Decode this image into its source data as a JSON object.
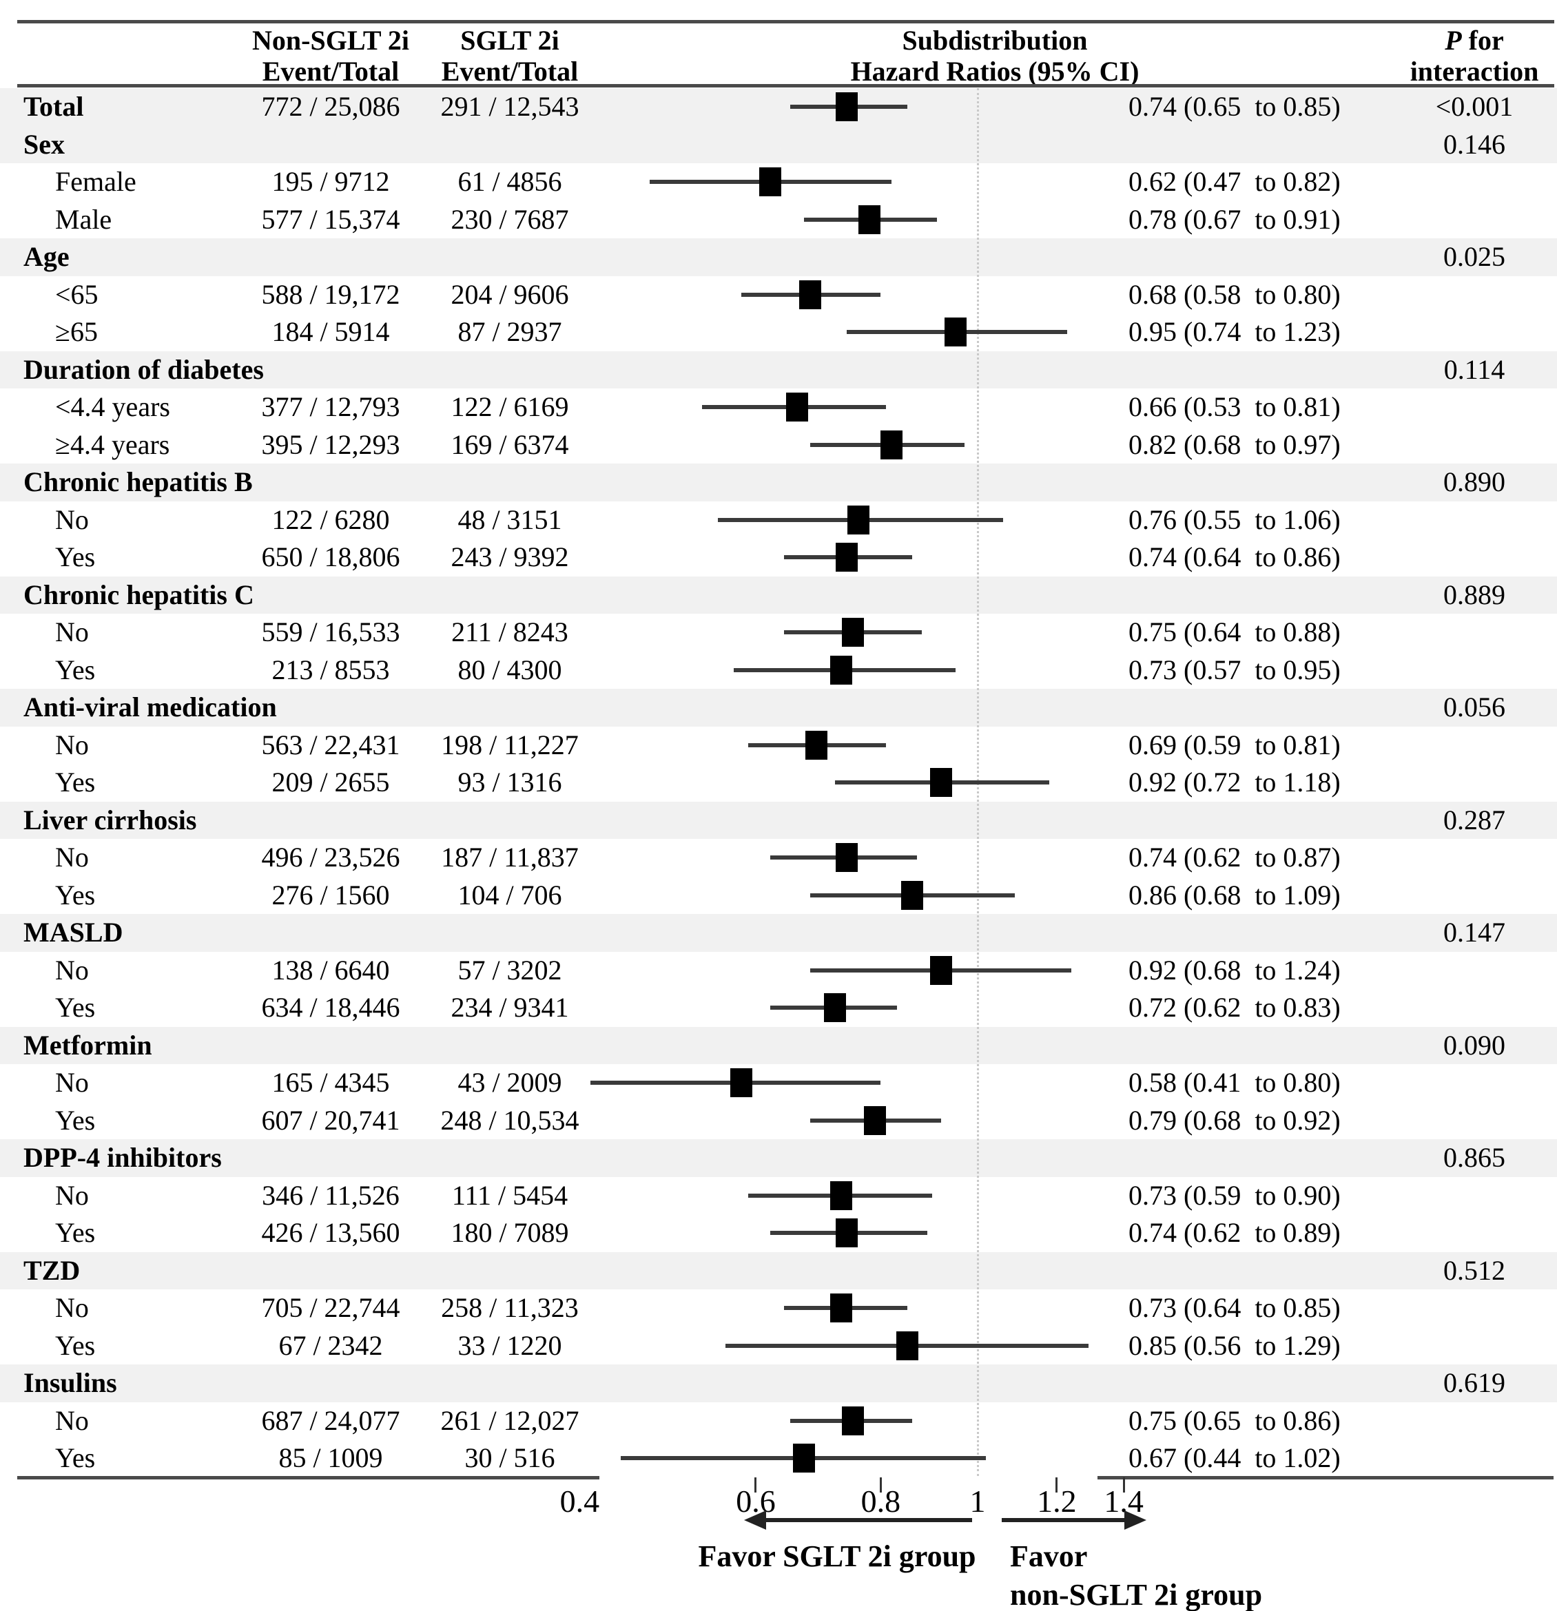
{
  "header": {
    "col_nonsglt": {
      "name": "Non-SGLT 2i",
      "sub": "Event/Total"
    },
    "col_sglt": {
      "name": "SGLT 2i",
      "sub": "Event/Total"
    },
    "col_hr": {
      "line1": "Subdistribution",
      "line2": "Hazard Ratios (95% CI)"
    },
    "col_p": {
      "italic": "P",
      "rest": " for",
      "line2": "interaction"
    }
  },
  "colors": {
    "shaded_row": "#f1f1f1",
    "rule": "#4a4a4a",
    "ci_line": "#3a3a3a",
    "marker": "#000000",
    "reference_line": "#c9c9c9"
  },
  "chart_data": {
    "type": "forest",
    "x_axis": {
      "scale": "log",
      "range": [
        0.4,
        1.5
      ],
      "tick_labels": [
        "0.4",
        "0.6",
        "0.8",
        "1",
        "1.2",
        "1.4"
      ],
      "tick_values": [
        0.4,
        0.6,
        0.8,
        1,
        1.2,
        1.4
      ],
      "tick_marks": [
        0.6,
        0.8,
        1.2,
        1.4
      ],
      "reference_line": 1.0
    },
    "arrows": {
      "left_label": "Favor SGLT 2i group",
      "right_label_line1": "Favor",
      "right_label_line2": "non-SGLT 2i group"
    },
    "rows": [
      {
        "label": "Total",
        "cat": true,
        "shaded": true,
        "non_sglt": "772 / 25,086",
        "sglt": "291 / 12,543",
        "est": 0.74,
        "lo": 0.65,
        "hi": 0.85,
        "hr_text": "0.74 (0.65  to 0.85)",
        "p": "<0.001"
      },
      {
        "label": "Sex",
        "cat": true,
        "shaded": true,
        "p": "0.146"
      },
      {
        "label": "Female",
        "non_sglt": "195 / 9712",
        "sglt": "61 / 4856",
        "est": 0.62,
        "lo": 0.47,
        "hi": 0.82,
        "hr_text": "0.62 (0.47  to 0.82)"
      },
      {
        "label": "Male",
        "non_sglt": "577 / 15,374",
        "sglt": "230 / 7687",
        "est": 0.78,
        "lo": 0.67,
        "hi": 0.91,
        "hr_text": "0.78 (0.67  to 0.91)"
      },
      {
        "label": "Age",
        "cat": true,
        "shaded": true,
        "p": "0.025"
      },
      {
        "label": "<65",
        "non_sglt": "588 / 19,172",
        "sglt": "204 / 9606",
        "est": 0.68,
        "lo": 0.58,
        "hi": 0.8,
        "hr_text": "0.68 (0.58  to 0.80)"
      },
      {
        "label": "≥65",
        "non_sglt": "184 / 5914",
        "sglt": "87 / 2937",
        "est": 0.95,
        "lo": 0.74,
        "hi": 1.23,
        "hr_text": "0.95 (0.74  to 1.23)"
      },
      {
        "label": "Duration of diabetes",
        "cat": true,
        "shaded": true,
        "p": "0.114"
      },
      {
        "label": "<4.4 years",
        "non_sglt": "377 / 12,793",
        "sglt": "122 / 6169",
        "est": 0.66,
        "lo": 0.53,
        "hi": 0.81,
        "hr_text": "0.66 (0.53  to 0.81)"
      },
      {
        "label": "≥4.4 years",
        "non_sglt": "395 / 12,293",
        "sglt": "169 / 6374",
        "est": 0.82,
        "lo": 0.68,
        "hi": 0.97,
        "hr_text": "0.82 (0.68  to 0.97)"
      },
      {
        "label": "Chronic hepatitis B",
        "cat": true,
        "shaded": true,
        "p": "0.890"
      },
      {
        "label": "No",
        "non_sglt": "122 / 6280",
        "sglt": "48 / 3151",
        "est": 0.76,
        "lo": 0.55,
        "hi": 1.06,
        "hr_text": "0.76 (0.55  to 1.06)"
      },
      {
        "label": "Yes",
        "non_sglt": "650 / 18,806",
        "sglt": "243 / 9392",
        "est": 0.74,
        "lo": 0.64,
        "hi": 0.86,
        "hr_text": "0.74 (0.64  to 0.86)"
      },
      {
        "label": "Chronic hepatitis C",
        "cat": true,
        "shaded": true,
        "p": "0.889"
      },
      {
        "label": "No",
        "non_sglt": "559 / 16,533",
        "sglt": "211 / 8243",
        "est": 0.75,
        "lo": 0.64,
        "hi": 0.88,
        "hr_text": "0.75 (0.64  to 0.88)"
      },
      {
        "label": "Yes",
        "non_sglt": "213 / 8553",
        "sglt": "80 / 4300",
        "est": 0.73,
        "lo": 0.57,
        "hi": 0.95,
        "hr_text": "0.73 (0.57  to 0.95)"
      },
      {
        "label": "Anti-viral medication",
        "cat": true,
        "shaded": true,
        "p": "0.056"
      },
      {
        "label": "No",
        "non_sglt": "563 / 22,431",
        "sglt": "198 / 11,227",
        "est": 0.69,
        "lo": 0.59,
        "hi": 0.81,
        "hr_text": "0.69 (0.59  to 0.81)"
      },
      {
        "label": "Yes",
        "non_sglt": "209 / 2655",
        "sglt": "93 / 1316",
        "est": 0.92,
        "lo": 0.72,
        "hi": 1.18,
        "hr_text": "0.92 (0.72  to 1.18)"
      },
      {
        "label": "Liver cirrhosis",
        "cat": true,
        "shaded": true,
        "p": "0.287"
      },
      {
        "label": "No",
        "non_sglt": "496 / 23,526",
        "sglt": "187 / 11,837",
        "est": 0.74,
        "lo": 0.62,
        "hi": 0.87,
        "hr_text": "0.74 (0.62  to 0.87)"
      },
      {
        "label": "Yes",
        "non_sglt": "276 / 1560",
        "sglt": "104 / 706",
        "est": 0.86,
        "lo": 0.68,
        "hi": 1.09,
        "hr_text": "0.86 (0.68  to 1.09)"
      },
      {
        "label": "MASLD",
        "cat": true,
        "shaded": true,
        "p": "0.147"
      },
      {
        "label": "No",
        "non_sglt": "138 / 6640",
        "sglt": "57 / 3202",
        "est": 0.92,
        "lo": 0.68,
        "hi": 1.24,
        "hr_text": "0.92 (0.68  to 1.24)"
      },
      {
        "label": "Yes",
        "non_sglt": "634 / 18,446",
        "sglt": "234 / 9341",
        "est": 0.72,
        "lo": 0.62,
        "hi": 0.83,
        "hr_text": "0.72 (0.62  to 0.83)"
      },
      {
        "label": "Metformin",
        "cat": true,
        "shaded": true,
        "p": "0.090"
      },
      {
        "label": "No",
        "non_sglt": "165 / 4345",
        "sglt": "43 / 2009",
        "est": 0.58,
        "lo": 0.41,
        "hi": 0.8,
        "hr_text": "0.58 (0.41  to 0.80)"
      },
      {
        "label": "Yes",
        "non_sglt": "607 / 20,741",
        "sglt": "248 / 10,534",
        "est": 0.79,
        "lo": 0.68,
        "hi": 0.92,
        "hr_text": "0.79 (0.68  to 0.92)"
      },
      {
        "label": "DPP-4 inhibitors",
        "cat": true,
        "shaded": true,
        "p": "0.865"
      },
      {
        "label": "No",
        "non_sglt": "346 / 11,526",
        "sglt": "111 / 5454",
        "est": 0.73,
        "lo": 0.59,
        "hi": 0.9,
        "hr_text": "0.73 (0.59  to 0.90)"
      },
      {
        "label": "Yes",
        "non_sglt": "426 / 13,560",
        "sglt": "180 / 7089",
        "est": 0.74,
        "lo": 0.62,
        "hi": 0.89,
        "hr_text": "0.74 (0.62  to 0.89)"
      },
      {
        "label": "TZD",
        "cat": true,
        "shaded": true,
        "p": "0.512"
      },
      {
        "label": "No",
        "non_sglt": "705 / 22,744",
        "sglt": "258 / 11,323",
        "est": 0.73,
        "lo": 0.64,
        "hi": 0.85,
        "hr_text": "0.73 (0.64  to 0.85)"
      },
      {
        "label": "Yes",
        "non_sglt": "67 / 2342",
        "sglt": "33 / 1220",
        "est": 0.85,
        "lo": 0.56,
        "hi": 1.29,
        "hr_text": "0.85 (0.56  to 1.29)"
      },
      {
        "label": "Insulins",
        "cat": true,
        "shaded": true,
        "p": "0.619"
      },
      {
        "label": "No",
        "non_sglt": "687 / 24,077",
        "sglt": "261 / 12,027",
        "est": 0.75,
        "lo": 0.65,
        "hi": 0.86,
        "hr_text": "0.75 (0.65  to 0.86)"
      },
      {
        "label": "Yes",
        "non_sglt": "85 / 1009",
        "sglt": "30 / 516",
        "est": 0.67,
        "lo": 0.44,
        "hi": 1.02,
        "hr_text": "0.67 (0.44  to 1.02)"
      }
    ]
  }
}
